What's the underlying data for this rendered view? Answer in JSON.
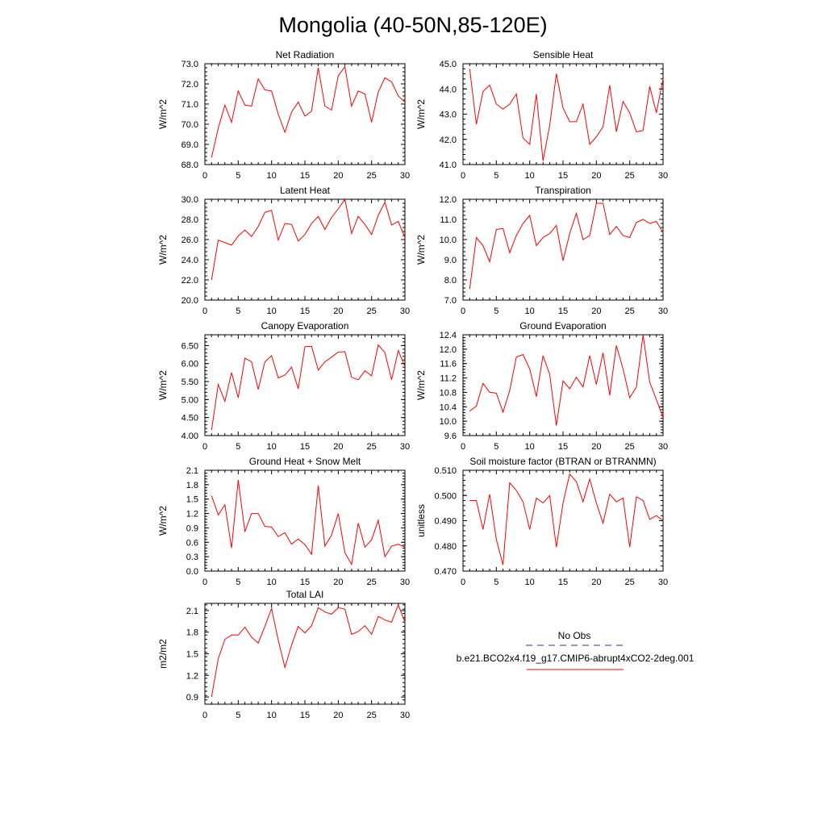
{
  "figure": {
    "title": "Mongolia (40-50N,85-120E)"
  },
  "legend": {
    "entries": [
      {
        "label": "No Obs",
        "color": "#3030a0",
        "style": "dashed"
      },
      {
        "label": "b.e21.BCO2x4.f19_g17.CMIP6-abrupt4xCO2-2deg.001",
        "color": "#ff0000",
        "style": "solid"
      }
    ]
  },
  "chart_data": [
    {
      "type": "line",
      "title": "Net Radiation",
      "ylabel": "W/m^2",
      "xlabel": "",
      "xlim": [
        0,
        30
      ],
      "ylim": [
        68.0,
        73.0
      ],
      "xticks": [
        0,
        5,
        10,
        15,
        20,
        25,
        30
      ],
      "yticks": [
        68.0,
        69.0,
        70.0,
        71.0,
        72.0,
        73.0
      ],
      "ytick_labels": [
        "68.0",
        "69.0",
        "70.0",
        "71.0",
        "72.0",
        "73.0"
      ],
      "x": [
        1,
        2,
        3,
        4,
        5,
        6,
        7,
        8,
        9,
        10,
        11,
        12,
        13,
        14,
        15,
        16,
        17,
        18,
        19,
        20,
        21,
        22,
        23,
        24,
        25,
        26,
        27,
        28,
        29,
        30
      ],
      "series": [
        {
          "name": "b.e21.BCO2x4.f19_g17.CMIP6-abrupt4xCO2-2deg.001",
          "color": "#ff0000",
          "values": [
            68.35,
            69.8,
            70.95,
            70.1,
            71.65,
            70.95,
            70.9,
            72.25,
            71.7,
            71.65,
            70.5,
            69.6,
            70.6,
            71.1,
            70.4,
            70.65,
            72.8,
            70.9,
            70.7,
            72.4,
            72.85,
            70.9,
            71.65,
            71.5,
            70.1,
            71.6,
            72.3,
            72.1,
            71.4,
            71.1
          ]
        }
      ]
    },
    {
      "type": "line",
      "title": "Sensible Heat",
      "ylabel": "W/m^2",
      "xlabel": "",
      "xlim": [
        0,
        30
      ],
      "ylim": [
        41.0,
        45.0
      ],
      "xticks": [
        0,
        5,
        10,
        15,
        20,
        25,
        30
      ],
      "yticks": [
        41.0,
        42.0,
        43.0,
        44.0,
        45.0
      ],
      "ytick_labels": [
        "41.0",
        "42.0",
        "43.0",
        "44.0",
        "45.0"
      ],
      "x": [
        1,
        2,
        3,
        4,
        5,
        6,
        7,
        8,
        9,
        10,
        11,
        12,
        13,
        14,
        15,
        16,
        17,
        18,
        19,
        20,
        21,
        22,
        23,
        24,
        25,
        26,
        27,
        28,
        29,
        30
      ],
      "series": [
        {
          "name": "b.e21.BCO2x4.f19_g17.CMIP6-abrupt4xCO2-2deg.001",
          "color": "#ff0000",
          "values": [
            44.8,
            42.6,
            43.9,
            44.15,
            43.4,
            43.2,
            43.4,
            43.8,
            42.05,
            41.8,
            43.8,
            41.15,
            42.55,
            44.6,
            43.25,
            42.7,
            42.7,
            43.4,
            41.8,
            42.1,
            42.5,
            44.15,
            42.3,
            43.5,
            43.05,
            42.3,
            42.35,
            44.1,
            43.05,
            44.4
          ]
        }
      ]
    },
    {
      "type": "line",
      "title": "Latent Heat",
      "ylabel": "W/m^2",
      "xlabel": "",
      "xlim": [
        0,
        30
      ],
      "ylim": [
        20.0,
        30.0
      ],
      "xticks": [
        0,
        5,
        10,
        15,
        20,
        25,
        30
      ],
      "yticks": [
        20.0,
        22.0,
        24.0,
        26.0,
        28.0,
        30.0
      ],
      "ytick_labels": [
        "20.0",
        "22.0",
        "24.0",
        "26.0",
        "28.0",
        "30.0"
      ],
      "x": [
        1,
        2,
        3,
        4,
        5,
        6,
        7,
        8,
        9,
        10,
        11,
        12,
        13,
        14,
        15,
        16,
        17,
        18,
        19,
        20,
        21,
        22,
        23,
        24,
        25,
        26,
        27,
        28,
        29,
        30
      ],
      "series": [
        {
          "name": "b.e21.BCO2x4.f19_g17.CMIP6-abrupt4xCO2-2deg.001",
          "color": "#ff0000",
          "values": [
            22.0,
            25.95,
            25.7,
            25.45,
            26.35,
            26.95,
            26.3,
            27.3,
            28.7,
            28.9,
            25.95,
            27.6,
            27.5,
            25.85,
            26.5,
            27.6,
            28.3,
            27.0,
            28.2,
            29.05,
            30.0,
            26.6,
            28.3,
            27.5,
            26.5,
            28.4,
            29.7,
            27.45,
            27.8,
            26.2
          ]
        }
      ]
    },
    {
      "type": "line",
      "title": "Transpiration",
      "ylabel": "W/m^2",
      "xlabel": "",
      "xlim": [
        0,
        30
      ],
      "ylim": [
        7.0,
        12.0
      ],
      "xticks": [
        0,
        5,
        10,
        15,
        20,
        25,
        30
      ],
      "yticks": [
        7.0,
        8.0,
        9.0,
        10.0,
        11.0,
        12.0
      ],
      "ytick_labels": [
        "7.0",
        "8.0",
        "9.0",
        "10.0",
        "11.0",
        "12.0"
      ],
      "x": [
        1,
        2,
        3,
        4,
        5,
        6,
        7,
        8,
        9,
        10,
        11,
        12,
        13,
        14,
        15,
        16,
        17,
        18,
        19,
        20,
        21,
        22,
        23,
        24,
        25,
        26,
        27,
        28,
        29,
        30
      ],
      "series": [
        {
          "name": "b.e21.BCO2x4.f19_g17.CMIP6-abrupt4xCO2-2deg.001",
          "color": "#ff0000",
          "values": [
            7.55,
            10.1,
            9.7,
            8.9,
            10.5,
            10.55,
            9.35,
            10.2,
            10.8,
            11.2,
            9.7,
            10.1,
            10.3,
            10.7,
            8.95,
            10.3,
            11.3,
            10.0,
            10.2,
            11.8,
            11.8,
            10.25,
            10.65,
            10.2,
            10.1,
            10.85,
            11.0,
            10.8,
            10.9,
            10.35
          ]
        }
      ]
    },
    {
      "type": "line",
      "title": "Canopy Evaporation",
      "ylabel": "W/m^2",
      "xlabel": "",
      "xlim": [
        0,
        30
      ],
      "ylim": [
        4.0,
        6.8
      ],
      "xticks": [
        0,
        5,
        10,
        15,
        20,
        25,
        30
      ],
      "yticks": [
        4.0,
        4.5,
        5.0,
        5.5,
        6.0,
        6.5
      ],
      "ytick_labels": [
        "4.00",
        "4.50",
        "5.00",
        "5.50",
        "6.00",
        "6.50"
      ],
      "x": [
        1,
        2,
        3,
        4,
        5,
        6,
        7,
        8,
        9,
        10,
        11,
        12,
        13,
        14,
        15,
        16,
        17,
        18,
        19,
        20,
        21,
        22,
        23,
        24,
        25,
        26,
        27,
        28,
        29,
        30
      ],
      "series": [
        {
          "name": "b.e21.BCO2x4.f19_g17.CMIP6-abrupt4xCO2-2deg.001",
          "color": "#ff0000",
          "values": [
            4.15,
            5.42,
            4.95,
            5.75,
            5.05,
            6.15,
            6.05,
            5.28,
            6.05,
            6.22,
            5.6,
            5.68,
            5.9,
            5.3,
            6.47,
            6.48,
            5.82,
            6.05,
            6.18,
            6.32,
            6.33,
            5.62,
            5.55,
            5.8,
            5.66,
            6.52,
            6.3,
            5.55,
            6.36,
            5.92
          ]
        }
      ]
    },
    {
      "type": "line",
      "title": "Ground Evaporation",
      "ylabel": "W/m^2",
      "xlabel": "",
      "xlim": [
        0,
        30
      ],
      "ylim": [
        9.6,
        12.4
      ],
      "xticks": [
        0,
        5,
        10,
        15,
        20,
        25,
        30
      ],
      "yticks": [
        9.6,
        10.0,
        10.4,
        10.8,
        11.2,
        11.6,
        12.0,
        12.4
      ],
      "ytick_labels": [
        "9.6",
        "10.0",
        "10.4",
        "10.8",
        "11.2",
        "11.6",
        "12.0",
        "12.4"
      ],
      "x": [
        1,
        2,
        3,
        4,
        5,
        6,
        7,
        8,
        9,
        10,
        11,
        12,
        13,
        14,
        15,
        16,
        17,
        18,
        19,
        20,
        21,
        22,
        23,
        24,
        25,
        26,
        27,
        28,
        29,
        30
      ],
      "series": [
        {
          "name": "b.e21.BCO2x4.f19_g17.CMIP6-abrupt4xCO2-2deg.001",
          "color": "#ff0000",
          "values": [
            10.28,
            10.42,
            11.05,
            10.8,
            10.78,
            10.25,
            10.85,
            11.78,
            11.85,
            11.45,
            10.68,
            11.82,
            11.3,
            9.88,
            11.12,
            10.9,
            11.22,
            10.95,
            11.82,
            11.02,
            11.9,
            10.72,
            12.1,
            11.45,
            10.65,
            10.95,
            12.4,
            11.08,
            10.6,
            10.1
          ]
        }
      ]
    },
    {
      "type": "line",
      "title": "Ground Heat + Snow Melt",
      "ylabel": "W/m^2",
      "xlabel": "",
      "xlim": [
        0,
        30
      ],
      "ylim": [
        0.0,
        2.1
      ],
      "xticks": [
        0,
        5,
        10,
        15,
        20,
        25,
        30
      ],
      "yticks": [
        0.0,
        0.3,
        0.6,
        0.9,
        1.2,
        1.5,
        1.8,
        2.1
      ],
      "ytick_labels": [
        "0.0",
        "0.3",
        "0.6",
        "0.9",
        "1.2",
        "1.5",
        "1.8",
        "2.1"
      ],
      "x": [
        1,
        2,
        3,
        4,
        5,
        6,
        7,
        8,
        9,
        10,
        11,
        12,
        13,
        14,
        15,
        16,
        17,
        18,
        19,
        20,
        21,
        22,
        23,
        24,
        25,
        26,
        27,
        28,
        29,
        30
      ],
      "series": [
        {
          "name": "b.e21.BCO2x4.f19_g17.CMIP6-abrupt4xCO2-2deg.001",
          "color": "#ff0000",
          "values": [
            1.57,
            1.17,
            1.38,
            0.48,
            1.9,
            0.82,
            1.2,
            1.2,
            0.93,
            0.92,
            0.72,
            0.8,
            0.56,
            0.67,
            0.55,
            0.35,
            1.78,
            0.52,
            0.75,
            1.2,
            0.38,
            0.14,
            1.0,
            0.5,
            0.65,
            1.06,
            0.3,
            0.52,
            0.56,
            0.5
          ]
        }
      ]
    },
    {
      "type": "line",
      "title": "Soil moisture factor (BTRAN or BTRANMN)",
      "ylabel": "unitless",
      "xlabel": "",
      "xlim": [
        0,
        30
      ],
      "ylim": [
        0.47,
        0.51
      ],
      "xticks": [
        0,
        5,
        10,
        15,
        20,
        25,
        30
      ],
      "yticks": [
        0.47,
        0.48,
        0.49,
        0.5,
        0.51
      ],
      "ytick_labels": [
        "0.470",
        "0.480",
        "0.490",
        "0.500",
        "0.510"
      ],
      "x": [
        1,
        2,
        3,
        4,
        5,
        6,
        7,
        8,
        9,
        10,
        11,
        12,
        13,
        14,
        15,
        16,
        17,
        18,
        19,
        20,
        21,
        22,
        23,
        24,
        25,
        26,
        27,
        28,
        29,
        30
      ],
      "series": [
        {
          "name": "b.e21.BCO2x4.f19_g17.CMIP6-abrupt4xCO2-2deg.001",
          "color": "#ff0000",
          "values": [
            0.498,
            0.498,
            0.4865,
            0.5005,
            0.4825,
            0.4725,
            0.505,
            0.502,
            0.4975,
            0.4865,
            0.499,
            0.497,
            0.5,
            0.4795,
            0.497,
            0.5085,
            0.5055,
            0.4975,
            0.5065,
            0.497,
            0.489,
            0.5005,
            0.4975,
            0.499,
            0.4795,
            0.4995,
            0.498,
            0.4905,
            0.492,
            0.49
          ]
        }
      ]
    },
    {
      "type": "line",
      "title": "Total LAI",
      "ylabel": "m2/m2",
      "xlabel": "",
      "xlim": [
        0,
        30
      ],
      "ylim": [
        0.8,
        2.2
      ],
      "xticks": [
        0,
        5,
        10,
        15,
        20,
        25,
        30
      ],
      "yticks": [
        0.9,
        1.2,
        1.5,
        1.8,
        2.1
      ],
      "ytick_labels": [
        "0.9",
        "1.2",
        "1.5",
        "1.8",
        "2.1"
      ],
      "x": [
        1,
        2,
        3,
        4,
        5,
        6,
        7,
        8,
        9,
        10,
        11,
        12,
        13,
        14,
        15,
        16,
        17,
        18,
        19,
        20,
        21,
        22,
        23,
        24,
        25,
        26,
        27,
        28,
        29,
        30
      ],
      "series": [
        {
          "name": "b.e21.BCO2x4.f19_g17.CMIP6-abrupt4xCO2-2deg.001",
          "color": "#ff0000",
          "values": [
            0.9,
            1.43,
            1.7,
            1.76,
            1.76,
            1.87,
            1.73,
            1.65,
            1.88,
            2.13,
            1.69,
            1.31,
            1.62,
            1.88,
            1.79,
            1.89,
            2.14,
            2.08,
            2.05,
            2.14,
            2.12,
            1.77,
            1.81,
            1.89,
            1.77,
            2.02,
            1.97,
            1.94,
            2.18,
            1.94
          ]
        }
      ]
    }
  ]
}
